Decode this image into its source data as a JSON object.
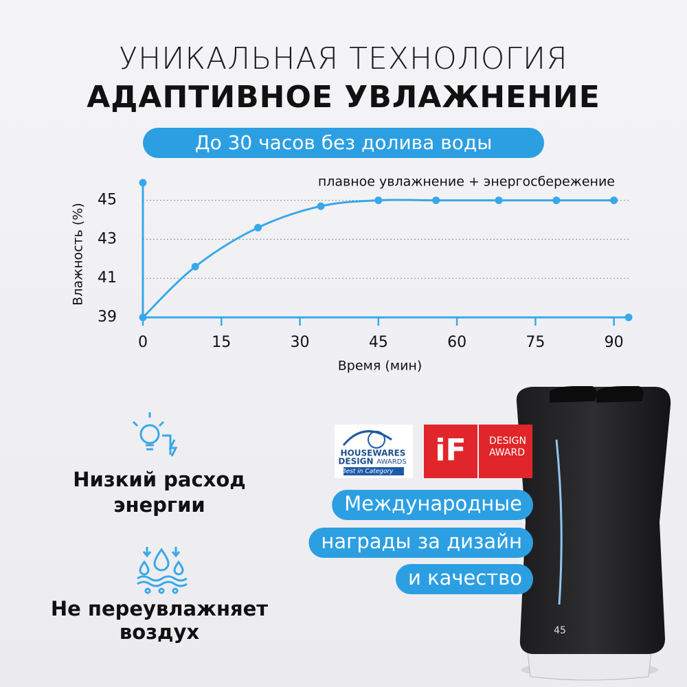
{
  "header": {
    "title_line1": "УНИКАЛЬНАЯ ТЕХНОЛОГИЯ",
    "title_line2": "АДАПТИВНОЕ УВЛАЖНЕНИЕ",
    "subtitle": "До 30 часов без долива воды"
  },
  "chart_data": {
    "type": "line",
    "x_label": "Время (мин)",
    "y_label": "Влажность (%)",
    "x": [
      0,
      10,
      22,
      34,
      45,
      56,
      68,
      79,
      90
    ],
    "series": [
      {
        "name": "плавное увлажнение + энергосбережение",
        "color": "#38a8e8",
        "values": [
          39,
          41.6,
          43.6,
          44.7,
          45,
          45,
          45,
          45,
          45
        ]
      }
    ],
    "xlim": [
      0,
      92.8
    ],
    "ylim": [
      39,
      45.9
    ],
    "xticks": [
      0,
      15,
      30,
      45,
      60,
      75,
      90
    ],
    "yticks": [
      39,
      41,
      43,
      45
    ],
    "grid": true
  },
  "features": [
    {
      "label_lines": [
        "Низкий расход",
        "энергии"
      ]
    },
    {
      "label_lines": [
        "Не переувлажняет",
        "воздух"
      ]
    }
  ],
  "awards": {
    "housewares": {
      "line1": "HOUSEWARES",
      "line2": "DESIGN",
      "line3": "AWARDS",
      "badge": "Best in Category"
    },
    "if_award": {
      "logo": "iF",
      "text_lines": [
        "DESIGN",
        "AWARD"
      ]
    },
    "caption_lines": [
      "Международные",
      "награды за дизайн",
      "и качество"
    ]
  },
  "product": {
    "display": "45"
  }
}
